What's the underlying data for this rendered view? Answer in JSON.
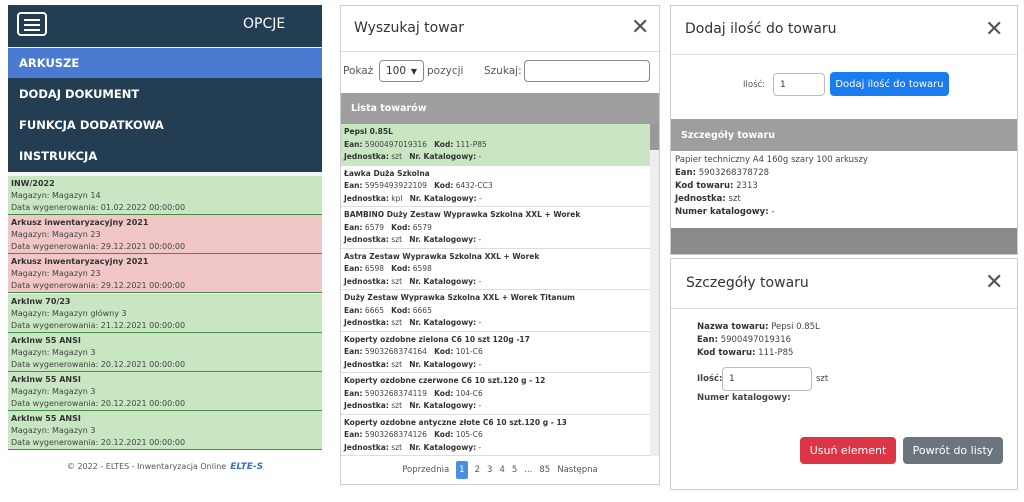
{
  "sidebar": {
    "title": "OPCJE",
    "menu": [
      "ARKUSZE",
      "DODAJ DOKUMENT",
      "FUNKCJA DODATKOWA",
      "INSTRUKCJA"
    ],
    "sheets": [
      {
        "title": "INW/2022",
        "warehouse": "Magazyn: Magazyn 14",
        "date": "Data wygenerowania: 01.02.2022 00:00:00",
        "color": "#c8e6c2"
      },
      {
        "title": "Arkusz inwentaryzacyjny 2021",
        "warehouse": "Magazyn: Magazyn 23",
        "date": "Data wygenerowania: 29.12.2021 00:00:00",
        "color": "#f0c6c6"
      },
      {
        "title": "Arkusz inwentaryzacyjny 2021",
        "warehouse": "Magazyn: Magazyn 23",
        "date": "Data wygenerowania: 29.12.2021 00:00:00",
        "color": "#f0c6c6"
      },
      {
        "title": "ArkInw 70/23",
        "warehouse": "Magazyn: Magazyn główny 3",
        "date": "Data wygenerowania: 21.12.2021 00:00:00",
        "color": "#c8e6c2"
      },
      {
        "title": "ArkInw 55 ANSI",
        "warehouse": "Magazyn: Magazyn 3",
        "date": "Data wygenerowania: 20.12.2021 00:00:00",
        "color": "#c8e6c2"
      },
      {
        "title": "ArkInw 55 ANSI",
        "warehouse": "Magazyn: Magazyn 3",
        "date": "Data wygenerowania: 20.12.2021 00:00:00",
        "color": "#c8e6c2"
      },
      {
        "title": "ArkInw 55 ANSI",
        "warehouse": "Magazyn: Magazyn 3",
        "date": "Data wygenerowania: 20.12.2021 00:00:00",
        "color": "#c8e6c2"
      }
    ],
    "footer": "© 2022 - ELTES - Inwentaryzacja Online",
    "logo": "ELTE-S"
  },
  "search_modal": {
    "title": "Wyszukaj towar",
    "show_label": "Pokaż",
    "page_size": "100",
    "entries_label": "pozycji",
    "search_label": "Szukaj:",
    "list_header": "Lista towarów",
    "labels": {
      "ean": "Ean:",
      "code": "Kod:",
      "unit": "Jednostka:",
      "catalog": "Nr. Katalogowy:"
    },
    "products": [
      {
        "name": "Pepsi 0.85L",
        "ean": "5900497019316",
        "code": "111-P85",
        "unit": "szt",
        "catalog": "-"
      },
      {
        "name": "Ławka Duża Szkolna",
        "ean": "5959493922109",
        "code": "6432-CC3",
        "unit": "kpl",
        "catalog": "-"
      },
      {
        "name": "BAMBINO Duży Zestaw Wyprawka Szkolna XXL + Worek",
        "ean": "6579",
        "code": "6579",
        "unit": "szt",
        "catalog": "-"
      },
      {
        "name": "Astra Zestaw Wyprawka Szkolna XXL + Worek",
        "ean": "6598",
        "code": "6598",
        "unit": "szt",
        "catalog": "-"
      },
      {
        "name": "Duży Zestaw Wyprawka Szkolna XXL + Worek Titanum",
        "ean": "6665",
        "code": "6665",
        "unit": "szt",
        "catalog": "-"
      },
      {
        "name": "Koperty ozdobne zielona C6 10 szt 120g -17",
        "ean": "5903268374164",
        "code": "101-C6",
        "unit": "szt",
        "catalog": "-"
      },
      {
        "name": "Koperty ozdobne czerwone C6 10 szt.120 g - 12",
        "ean": "5903268374119",
        "code": "104-C6",
        "unit": "szt",
        "catalog": "-"
      },
      {
        "name": "Koperty ozdobne antyczne złote C6 10 szt.120 g - 13",
        "ean": "5903268374126",
        "code": "105-C6",
        "unit": "szt",
        "catalog": "-"
      }
    ],
    "pagination": [
      "Poprzednia",
      "1",
      "2",
      "3",
      "4",
      "5",
      "...",
      "85",
      "Następna"
    ]
  },
  "add_modal": {
    "title": "Dodaj ilość do towaru",
    "quantity_label": "Ilość:",
    "quantity": "1",
    "button": "Dodaj ilość do towaru",
    "details_header": "Szczegóły towaru",
    "product_name": "Papier techniczny A4 160g szary 100 arkuszy",
    "ean_label": "Ean:",
    "ean": "5903268378728",
    "code_label": "Kod towaru:",
    "code": "2313",
    "unit_label": "Jednostka:",
    "unit": "szt",
    "catalog_label": "Numer katalogowy:",
    "catalog": "-"
  },
  "details_modal": {
    "title": "Szczegóły towaru",
    "name_label": "Nazwa towaru:",
    "name": "Pepsi 0.85L",
    "ean_label": "Ean:",
    "ean": "5900497019316",
    "code_label": "Kod towaru:",
    "code": "111-P85",
    "quantity_label": "Ilość:",
    "quantity": "1",
    "quantity_unit": "szt",
    "catalog_label": "Numer katalogowy:",
    "delete_button": "Usuń element",
    "back_button": "Powrót do listy"
  }
}
